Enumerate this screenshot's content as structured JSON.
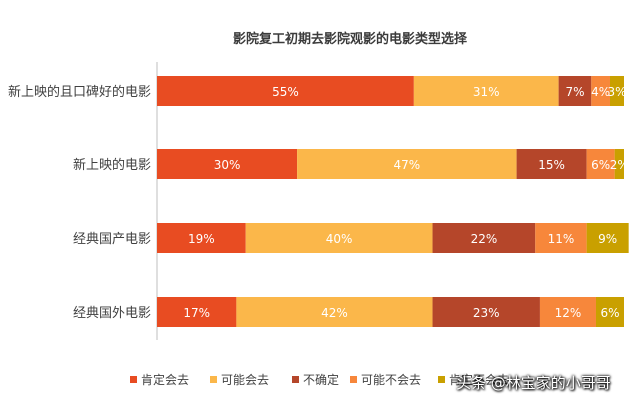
{
  "chart_data": {
    "type": "bar",
    "stacked": true,
    "percent": true,
    "orientation": "horizontal",
    "title": "影院复工初期去影院观影的电影类型选择",
    "categories": [
      "新上映的且口碑好的电影",
      "新上映的电影",
      "经典国产电影",
      "经典国外电影"
    ],
    "series": [
      {
        "name": "肯定会去",
        "color": "#e84c22",
        "values": [
          55,
          30,
          19,
          17
        ]
      },
      {
        "name": "可能会去",
        "color": "#fbb74a",
        "values": [
          31,
          47,
          40,
          42
        ]
      },
      {
        "name": "不确定",
        "color": "#b5462a",
        "values": [
          7,
          15,
          22,
          23
        ]
      },
      {
        "name": "可能不会去",
        "color": "#f7873b",
        "values": [
          4,
          6,
          11,
          12
        ]
      },
      {
        "name": "肯定不会去",
        "color": "#c9a000",
        "values": [
          3,
          2,
          9,
          6
        ]
      }
    ],
    "data_labels": [
      [
        "55%",
        "31%",
        "7%",
        "4%",
        "3%"
      ],
      [
        "30%",
        "47%",
        "15%",
        "6%",
        "2%"
      ],
      [
        "19%",
        "40%",
        "22%",
        "11%",
        "9%"
      ],
      [
        "17%",
        "42%",
        "23%",
        "12%",
        "6%"
      ]
    ],
    "xlim": [
      0,
      100
    ],
    "grid": false,
    "legend_position": "bottom"
  },
  "watermark": {
    "at": "@",
    "text": "头条 @林宝家的小哥哥"
  }
}
